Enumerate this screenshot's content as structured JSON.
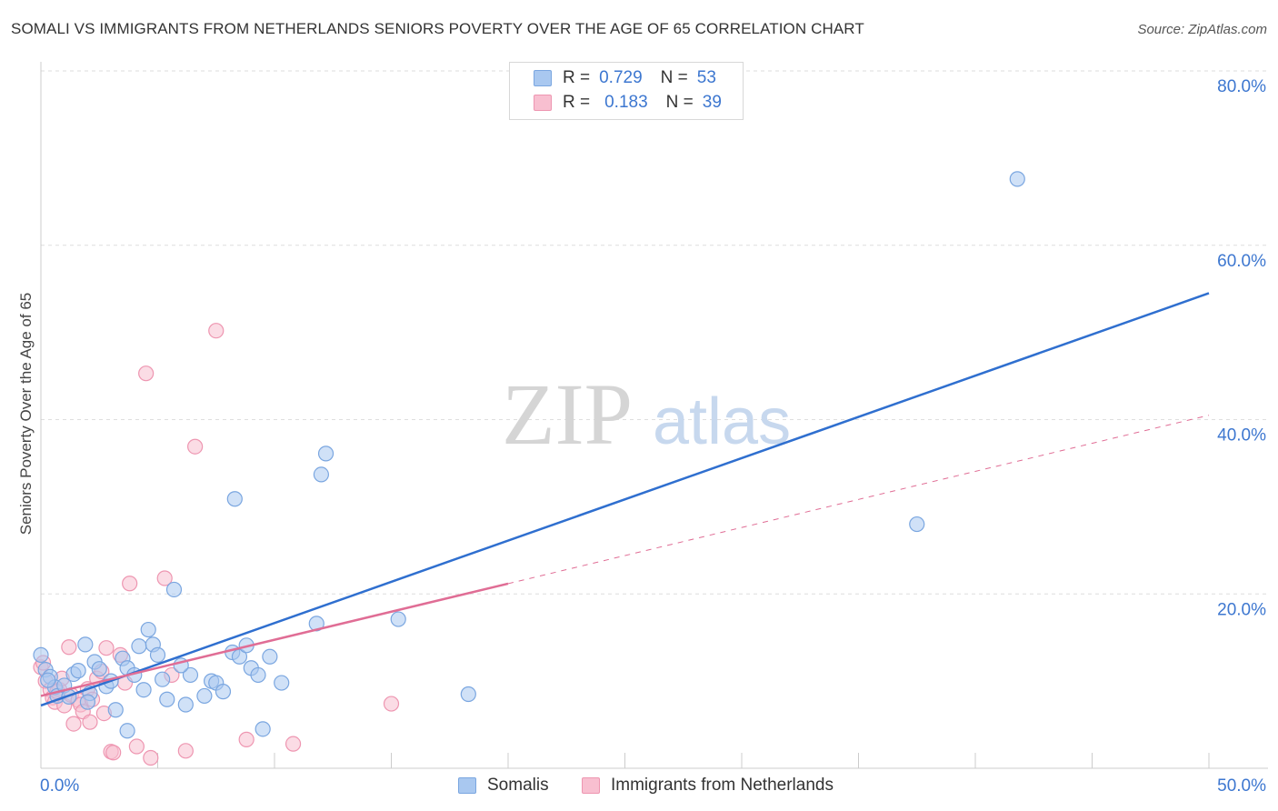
{
  "header": {
    "title": "SOMALI VS IMMIGRANTS FROM NETHERLANDS SENIORS POVERTY OVER THE AGE OF 65 CORRELATION CHART",
    "source": "Source: ZipAtlas.com"
  },
  "watermark": {
    "zip": "ZIP",
    "atlas": "atlas"
  },
  "colors": {
    "somali_fill": "#a9c8f0",
    "somali_stroke": "#7aa6e0",
    "somali_line": "#2f6fcf",
    "nl_fill": "#f8bfd0",
    "nl_stroke": "#ee96b1",
    "nl_line": "#e06d95",
    "grid": "#dedede",
    "tick_label": "#3d77d0"
  },
  "legend_top": {
    "rows": [
      {
        "r_label": "R =",
        "r_value": "0.729",
        "n_label": "N =",
        "n_value": "53"
      },
      {
        "r_label": "R =",
        "r_value": "0.183",
        "n_label": "N =",
        "n_value": "39"
      }
    ]
  },
  "legend_bottom": {
    "items": [
      {
        "label": "Somalis"
      },
      {
        "label": "Immigrants from Netherlands"
      }
    ]
  },
  "chart_data": {
    "type": "scatter",
    "title": "SOMALI VS IMMIGRANTS FROM NETHERLANDS SENIORS POVERTY OVER THE AGE OF 65 CORRELATION CHART",
    "xlabel": "",
    "ylabel": "Seniors Poverty Over the Age of 65",
    "xlim": [
      0,
      50
    ],
    "ylim": [
      0,
      80
    ],
    "x_tick_labels": [
      "0.0%",
      "50.0%"
    ],
    "y_ticks": [
      20,
      40,
      60,
      80
    ],
    "y_tick_labels": [
      "20.0%",
      "40.0%",
      "60.0%",
      "80.0%"
    ],
    "grid": true,
    "legend_position": "top-center",
    "series": [
      {
        "name": "Somalis",
        "r": 0.729,
        "n": 53,
        "trend": {
          "x": [
            0,
            50
          ],
          "y": [
            7.2,
            54.5
          ],
          "style": "solid"
        },
        "points": [
          [
            0.0,
            13.0
          ],
          [
            0.2,
            11.3
          ],
          [
            0.4,
            10.5
          ],
          [
            0.6,
            9.3
          ],
          [
            0.7,
            8.3
          ],
          [
            1.0,
            9.5
          ],
          [
            1.4,
            10.8
          ],
          [
            1.6,
            11.2
          ],
          [
            1.9,
            14.2
          ],
          [
            2.1,
            8.6
          ],
          [
            2.3,
            12.2
          ],
          [
            2.5,
            11.4
          ],
          [
            2.8,
            9.4
          ],
          [
            3.0,
            10.0
          ],
          [
            3.2,
            6.7
          ],
          [
            3.5,
            12.6
          ],
          [
            3.7,
            11.5
          ],
          [
            4.0,
            10.7
          ],
          [
            4.2,
            14.0
          ],
          [
            4.4,
            9.0
          ],
          [
            4.6,
            15.9
          ],
          [
            4.8,
            14.2
          ],
          [
            5.0,
            13.0
          ],
          [
            5.2,
            10.2
          ],
          [
            5.4,
            7.9
          ],
          [
            5.7,
            20.5
          ],
          [
            6.2,
            7.3
          ],
          [
            6.4,
            10.7
          ],
          [
            7.0,
            8.3
          ],
          [
            7.3,
            10.0
          ],
          [
            7.5,
            9.8
          ],
          [
            7.8,
            8.8
          ],
          [
            8.2,
            13.3
          ],
          [
            8.5,
            12.8
          ],
          [
            8.8,
            14.1
          ],
          [
            9.0,
            11.5
          ],
          [
            9.3,
            10.7
          ],
          [
            9.8,
            12.8
          ],
          [
            10.3,
            9.8
          ],
          [
            3.7,
            4.3
          ],
          [
            8.3,
            30.9
          ],
          [
            9.5,
            4.5
          ],
          [
            12.0,
            33.7
          ],
          [
            12.2,
            36.1
          ],
          [
            11.8,
            16.6
          ],
          [
            15.3,
            17.1
          ],
          [
            18.3,
            8.5
          ],
          [
            37.5,
            28.0
          ],
          [
            41.8,
            67.6
          ],
          [
            0.3,
            10.1
          ],
          [
            1.2,
            8.2
          ],
          [
            2.0,
            7.6
          ],
          [
            6.0,
            11.8
          ]
        ]
      },
      {
        "name": "Immigrants from Netherlands",
        "r": 0.183,
        "n": 39,
        "trend": {
          "x": [
            0,
            50
          ],
          "y": [
            8.3,
            40.5
          ],
          "solid_until_x": 20,
          "style": "solid-then-dashed"
        },
        "points": [
          [
            0.0,
            11.6
          ],
          [
            0.2,
            10.0
          ],
          [
            0.4,
            9.0
          ],
          [
            0.5,
            8.1
          ],
          [
            0.6,
            7.6
          ],
          [
            0.8,
            9.0
          ],
          [
            0.9,
            10.3
          ],
          [
            1.0,
            7.2
          ],
          [
            1.2,
            13.9
          ],
          [
            1.3,
            8.4
          ],
          [
            1.4,
            5.1
          ],
          [
            1.6,
            7.8
          ],
          [
            1.7,
            7.3
          ],
          [
            1.8,
            6.5
          ],
          [
            2.0,
            9.1
          ],
          [
            2.1,
            5.3
          ],
          [
            2.2,
            7.9
          ],
          [
            2.4,
            10.3
          ],
          [
            2.6,
            11.1
          ],
          [
            2.7,
            6.3
          ],
          [
            2.8,
            13.8
          ],
          [
            3.0,
            1.9
          ],
          [
            3.1,
            1.8
          ],
          [
            3.4,
            13.0
          ],
          [
            3.6,
            9.8
          ],
          [
            3.8,
            21.2
          ],
          [
            4.1,
            2.5
          ],
          [
            4.5,
            45.3
          ],
          [
            4.7,
            1.2
          ],
          [
            5.3,
            21.8
          ],
          [
            5.6,
            10.7
          ],
          [
            6.2,
            2.0
          ],
          [
            6.6,
            36.9
          ],
          [
            7.5,
            50.2
          ],
          [
            8.8,
            3.3
          ],
          [
            10.8,
            2.8
          ],
          [
            15.0,
            7.4
          ],
          [
            0.1,
            12.1
          ],
          [
            0.7,
            8.8
          ]
        ]
      }
    ]
  }
}
